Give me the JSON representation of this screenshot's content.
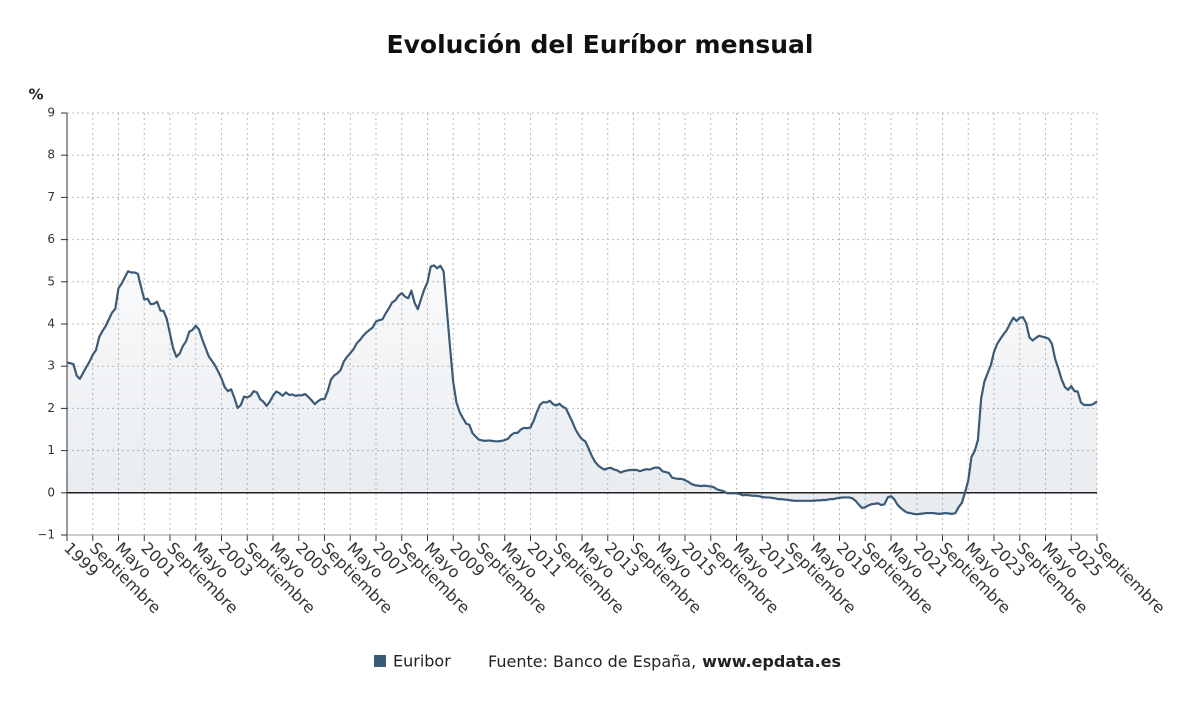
{
  "chart_data": {
    "type": "line",
    "title": "Evolución del Euríbor mensual",
    "y_label": "%",
    "source": "Fuente: Banco de España,",
    "source_link": "www.epdata.es",
    "ylim": [
      -1,
      9
    ],
    "yticks": [
      {
        "value": -1,
        "label": "−1"
      },
      0,
      1,
      2,
      3,
      4,
      5,
      6,
      7,
      8,
      9
    ],
    "grid": true,
    "legend": "bottom",
    "categories": [
      "1999",
      null,
      null,
      null,
      null,
      null,
      null,
      null,
      "Septiembre",
      null,
      null,
      null,
      null,
      null,
      null,
      null,
      "Mayo",
      null,
      null,
      null,
      null,
      null,
      null,
      null,
      "2001",
      null,
      null,
      null,
      null,
      null,
      null,
      null,
      "Septiembre",
      null,
      null,
      null,
      null,
      null,
      null,
      null,
      "Mayo",
      null,
      null,
      null,
      null,
      null,
      null,
      null,
      "2003",
      null,
      null,
      null,
      null,
      null,
      null,
      null,
      "Septiembre",
      null,
      null,
      null,
      null,
      null,
      null,
      null,
      "Mayo",
      null,
      null,
      null,
      null,
      null,
      null,
      null,
      "2005",
      null,
      null,
      null,
      null,
      null,
      null,
      null,
      "Septiembre",
      null,
      null,
      null,
      null,
      null,
      null,
      null,
      "Mayo",
      null,
      null,
      null,
      null,
      null,
      null,
      null,
      "2007",
      null,
      null,
      null,
      null,
      null,
      null,
      null,
      "Septiembre",
      null,
      null,
      null,
      null,
      null,
      null,
      null,
      "Mayo",
      null,
      null,
      null,
      null,
      null,
      null,
      null,
      "2009",
      null,
      null,
      null,
      null,
      null,
      null,
      null,
      "Septiembre",
      null,
      null,
      null,
      null,
      null,
      null,
      null,
      "Mayo",
      null,
      null,
      null,
      null,
      null,
      null,
      null,
      "2011",
      null,
      null,
      null,
      null,
      null,
      null,
      null,
      "Septiembre",
      null,
      null,
      null,
      null,
      null,
      null,
      null,
      "Mayo",
      null,
      null,
      null,
      null,
      null,
      null,
      null,
      "2013",
      null,
      null,
      null,
      null,
      null,
      null,
      null,
      "Septiembre",
      null,
      null,
      null,
      null,
      null,
      null,
      null,
      "Mayo",
      null,
      null,
      null,
      null,
      null,
      null,
      null,
      "2015",
      null,
      null,
      null,
      null,
      null,
      null,
      null,
      "Septiembre",
      null,
      null,
      null,
      null,
      null,
      null,
      null,
      "Mayo",
      null,
      null,
      null,
      null,
      null,
      null,
      null,
      "2017",
      null,
      null,
      null,
      null,
      null,
      null,
      null,
      "Septiembre",
      null,
      null,
      null,
      null,
      null,
      null,
      null,
      "Mayo",
      null,
      null,
      null,
      null,
      null,
      null,
      null,
      "2019",
      null,
      null,
      null,
      null,
      null,
      null,
      null,
      "Septiembre",
      null,
      null,
      null,
      null,
      null,
      null,
      null,
      "Mayo",
      null,
      null,
      null,
      null,
      null,
      null,
      null,
      "2021",
      null,
      null,
      null,
      null,
      null,
      null,
      null,
      "Septiembre",
      null,
      null,
      null,
      null,
      null,
      null,
      null,
      "Mayo",
      null,
      null,
      null,
      null,
      null,
      null,
      null,
      "2023",
      null,
      null,
      null,
      null,
      null,
      null,
      null,
      "Septiembre",
      null,
      null,
      null,
      null,
      null,
      null,
      null,
      "Mayo",
      null,
      null,
      null,
      null,
      null,
      null,
      null,
      "2025",
      null,
      null,
      null,
      null,
      null,
      null,
      null,
      "Septiembre"
    ],
    "series": [
      {
        "name": "Euribor",
        "color": "#3a5a78",
        "values": [
          3.09,
          3.07,
          3.05,
          2.78,
          2.7,
          2.84,
          2.98,
          3.11,
          3.27,
          3.38,
          3.69,
          3.83,
          3.95,
          4.11,
          4.27,
          4.36,
          4.85,
          4.96,
          5.11,
          5.25,
          5.22,
          5.22,
          5.19,
          4.88,
          4.58,
          4.6,
          4.47,
          4.48,
          4.53,
          4.32,
          4.31,
          4.12,
          3.77,
          3.42,
          3.22,
          3.3,
          3.48,
          3.59,
          3.82,
          3.86,
          3.96,
          3.87,
          3.64,
          3.44,
          3.24,
          3.13,
          3.02,
          2.87,
          2.71,
          2.5,
          2.41,
          2.45,
          2.25,
          2.01,
          2.08,
          2.28,
          2.26,
          2.3,
          2.41,
          2.38,
          2.22,
          2.16,
          2.06,
          2.16,
          2.3,
          2.4,
          2.36,
          2.3,
          2.38,
          2.32,
          2.33,
          2.3,
          2.31,
          2.31,
          2.34,
          2.27,
          2.19,
          2.1,
          2.17,
          2.22,
          2.22,
          2.41,
          2.68,
          2.78,
          2.83,
          2.91,
          3.11,
          3.22,
          3.31,
          3.4,
          3.54,
          3.62,
          3.72,
          3.8,
          3.86,
          3.92,
          4.06,
          4.09,
          4.11,
          4.25,
          4.37,
          4.51,
          4.56,
          4.67,
          4.73,
          4.65,
          4.61,
          4.79,
          4.5,
          4.35,
          4.59,
          4.82,
          4.99,
          5.36,
          5.39,
          5.32,
          5.38,
          5.25,
          4.35,
          3.45,
          2.62,
          2.14,
          1.91,
          1.77,
          1.64,
          1.61,
          1.41,
          1.33,
          1.26,
          1.24,
          1.23,
          1.24,
          1.23,
          1.22,
          1.22,
          1.23,
          1.25,
          1.28,
          1.37,
          1.42,
          1.42,
          1.5,
          1.54,
          1.53,
          1.55,
          1.71,
          1.92,
          2.09,
          2.15,
          2.14,
          2.18,
          2.1,
          2.07,
          2.11,
          2.04,
          2.0,
          1.84,
          1.68,
          1.5,
          1.37,
          1.27,
          1.22,
          1.06,
          0.88,
          0.74,
          0.65,
          0.59,
          0.55,
          0.58,
          0.59,
          0.55,
          0.53,
          0.48,
          0.51,
          0.53,
          0.54,
          0.54,
          0.54,
          0.51,
          0.54,
          0.56,
          0.55,
          0.58,
          0.6,
          0.59,
          0.51,
          0.49,
          0.47,
          0.36,
          0.34,
          0.33,
          0.33,
          0.3,
          0.26,
          0.21,
          0.18,
          0.17,
          0.16,
          0.17,
          0.16,
          0.15,
          0.13,
          0.08,
          0.06,
          0.04,
          -0.01,
          -0.01,
          -0.01,
          -0.01,
          -0.03,
          -0.06,
          -0.05,
          -0.06,
          -0.07,
          -0.07,
          -0.08,
          -0.1,
          -0.11,
          -0.11,
          -0.12,
          -0.13,
          -0.15,
          -0.15,
          -0.16,
          -0.17,
          -0.18,
          -0.19,
          -0.19,
          -0.19,
          -0.19,
          -0.19,
          -0.19,
          -0.19,
          -0.18,
          -0.18,
          -0.17,
          -0.17,
          -0.15,
          -0.15,
          -0.13,
          -0.12,
          -0.11,
          -0.11,
          -0.11,
          -0.13,
          -0.19,
          -0.28,
          -0.36,
          -0.34,
          -0.3,
          -0.27,
          -0.26,
          -0.25,
          -0.29,
          -0.27,
          -0.11,
          -0.08,
          -0.15,
          -0.28,
          -0.36,
          -0.42,
          -0.47,
          -0.48,
          -0.5,
          -0.51,
          -0.5,
          -0.49,
          -0.48,
          -0.48,
          -0.48,
          -0.49,
          -0.5,
          -0.49,
          -0.48,
          -0.49,
          -0.5,
          -0.48,
          -0.34,
          -0.24,
          0.01,
          0.29,
          0.85,
          0.99,
          1.25,
          2.23,
          2.63,
          2.83,
          3.02,
          3.34,
          3.53,
          3.65,
          3.76,
          3.86,
          4.01,
          4.15,
          4.07,
          4.15,
          4.16,
          4.02,
          3.68,
          3.61,
          3.67,
          3.72,
          3.7,
          3.68,
          3.65,
          3.53,
          3.17,
          2.94,
          2.69,
          2.51,
          2.44,
          2.53,
          2.41,
          2.4,
          2.14,
          2.08,
          2.08,
          2.08,
          2.11,
          2.17
        ]
      }
    ]
  }
}
